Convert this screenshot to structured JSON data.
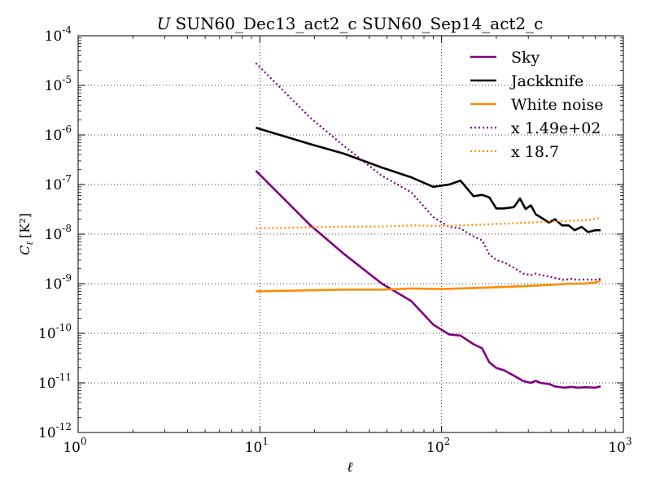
{
  "chart_data": {
    "type": "line",
    "title_italic": "U",
    "title": "SUN60_Dec13_act2_c SUN60_Sep14_act2_c",
    "xlabel": "ℓ",
    "ylabel_main": "C",
    "ylabel_sub": "ℓ",
    "ylabel_units": "[K²]",
    "xscale": "log",
    "yscale": "log",
    "xlim": [
      1,
      1000
    ],
    "ylim": [
      1e-12,
      0.0001
    ],
    "grid": true,
    "legend_position": "top-right",
    "x_ticks": [
      {
        "base": "10",
        "exp": "0",
        "value": 1
      },
      {
        "base": "10",
        "exp": "1",
        "value": 10
      },
      {
        "base": "10",
        "exp": "2",
        "value": 100
      },
      {
        "base": "10",
        "exp": "3",
        "value": 1000
      }
    ],
    "y_ticks": [
      {
        "base": "10",
        "exp": "-12",
        "value": 1e-12
      },
      {
        "base": "10",
        "exp": "-11",
        "value": 1e-11
      },
      {
        "base": "10",
        "exp": "-10",
        "value": 1e-10
      },
      {
        "base": "10",
        "exp": "-9",
        "value": 1e-09
      },
      {
        "base": "10",
        "exp": "-8",
        "value": 1e-08
      },
      {
        "base": "10",
        "exp": "-7",
        "value": 1e-07
      },
      {
        "base": "10",
        "exp": "-6",
        "value": 1e-06
      },
      {
        "base": "10",
        "exp": "-5",
        "value": 1e-05
      },
      {
        "base": "10",
        "exp": "-4",
        "value": 0.0001
      }
    ],
    "series": [
      {
        "name": "Sky",
        "color": "#800080",
        "style": "solid",
        "x": [
          9.5,
          19,
          29,
          47,
          68,
          90,
          110,
          127,
          150,
          167,
          183,
          200,
          220,
          250,
          280,
          310,
          330,
          350,
          390,
          420,
          470,
          520,
          560,
          620,
          700,
          750
        ],
        "y": [
          1.9e-07,
          1.5e-08,
          4e-09,
          1e-09,
          4.5e-10,
          1.5e-10,
          9.5e-11,
          9e-11,
          6e-11,
          5e-11,
          2.6e-11,
          2e-11,
          1.8e-11,
          1.4e-11,
          1.1e-11,
          1e-11,
          1.1e-11,
          1e-11,
          9.5e-12,
          8.5e-12,
          8e-12,
          8.3e-12,
          8e-12,
          8.2e-12,
          8e-12,
          8.5e-12
        ]
      },
      {
        "name": "Jackknife",
        "color": "#000000",
        "style": "solid",
        "x": [
          9.5,
          19,
          29,
          47,
          68,
          90,
          110,
          127,
          150,
          167,
          183,
          200,
          220,
          250,
          270,
          290,
          310,
          330,
          350,
          390,
          420,
          460,
          500,
          540,
          590,
          640,
          700,
          750
        ],
        "y": [
          1.4e-06,
          6.5e-07,
          4.2e-07,
          2.2e-07,
          1.4e-07,
          9e-08,
          1e-07,
          1.2e-07,
          5.8e-08,
          6.2e-08,
          5.5e-08,
          3.3e-08,
          3.3e-08,
          3.5e-08,
          5.2e-08,
          3.2e-08,
          3.8e-08,
          2.5e-08,
          2.2e-08,
          1.7e-08,
          2e-08,
          1.5e-08,
          1.5e-08,
          1.2e-08,
          1.4e-08,
          1.1e-08,
          1.2e-08,
          1.2e-08
        ]
      },
      {
        "name": "White noise",
        "color": "#FF8C00",
        "style": "solid",
        "x": [
          9.5,
          29,
          47,
          68,
          100,
          150,
          200,
          300,
          400,
          500,
          600,
          700,
          750
        ],
        "y": [
          7e-10,
          7.6e-10,
          7.6e-10,
          8e-10,
          7.8e-10,
          8.2e-10,
          8.5e-10,
          9e-10,
          9.5e-10,
          1e-09,
          1e-09,
          1.05e-09,
          1.15e-09
        ]
      },
      {
        "name": "x 1.49e+02",
        "color": "#800080",
        "style": "dotted",
        "x": [
          9.5,
          19,
          29,
          47,
          68,
          90,
          110,
          127,
          150,
          167,
          183,
          200,
          220,
          250,
          280,
          310,
          330,
          350,
          390,
          420,
          470,
          520,
          560,
          620,
          700,
          750
        ],
        "y": [
          2.8e-05,
          2.2e-06,
          6e-07,
          1.5e-07,
          7e-08,
          2.2e-08,
          1.4e-08,
          1.3e-08,
          9e-09,
          7.5e-09,
          3.9e-09,
          3e-09,
          2.7e-09,
          2.1e-09,
          1.6e-09,
          1.5e-09,
          1.6e-09,
          1.5e-09,
          1.4e-09,
          1.3e-09,
          1.2e-09,
          1.25e-09,
          1.2e-09,
          1.22e-09,
          1.2e-09,
          1.25e-09
        ]
      },
      {
        "name": "x 18.7",
        "color": "#FF8C00",
        "style": "dotted",
        "x": [
          9.5,
          29,
          47,
          68,
          100,
          150,
          200,
          300,
          400,
          500,
          600,
          700,
          750
        ],
        "y": [
          1.3e-08,
          1.42e-08,
          1.42e-08,
          1.5e-08,
          1.46e-08,
          1.53e-08,
          1.6e-08,
          1.7e-08,
          1.8e-08,
          1.85e-08,
          1.9e-08,
          2e-08,
          2.15e-08
        ]
      }
    ]
  }
}
